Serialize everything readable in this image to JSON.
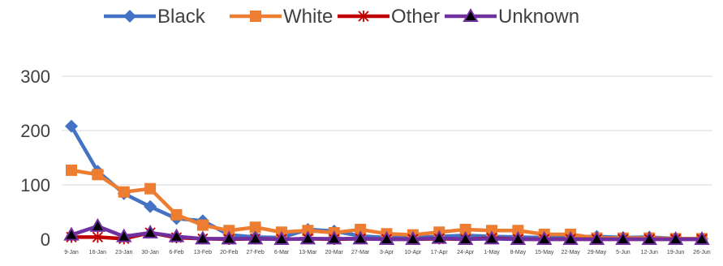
{
  "chart_data": {
    "type": "line",
    "title": "",
    "xlabel": "",
    "ylabel": "",
    "ylim": [
      0,
      300
    ],
    "yticks": [
      0,
      100,
      200,
      300
    ],
    "grid": true,
    "legend_position": "top",
    "categories": [
      "9-Jan",
      "16-Jan",
      "23-Jan",
      "30-Jan",
      "6-Feb",
      "13-Feb",
      "20-Feb",
      "27-Feb",
      "6-Mar",
      "13-Mar",
      "20-Mar",
      "27-Mar",
      "3-Apr",
      "10-Apr",
      "17-Apr",
      "24-Apr",
      "1-May",
      "8-May",
      "15-May",
      "22-May",
      "29-May",
      "5-Jun",
      "12-Jun",
      "19-Jun",
      "26-Jun"
    ],
    "series": [
      {
        "name": "Black",
        "color": "#4472C4",
        "marker": "diamond",
        "values": [
          208,
          125,
          84,
          60,
          38,
          34,
          8,
          4,
          3,
          18,
          15,
          6,
          3,
          3,
          5,
          7,
          5,
          4,
          3,
          4,
          5,
          3,
          4,
          1,
          1
        ]
      },
      {
        "name": "White",
        "color": "#ED7D31",
        "marker": "square",
        "values": [
          127,
          119,
          87,
          93,
          45,
          26,
          16,
          22,
          13,
          16,
          12,
          18,
          10,
          8,
          13,
          18,
          16,
          16,
          9,
          9,
          2,
          2,
          2,
          1,
          1
        ]
      },
      {
        "name": "Other",
        "color": "#C00000",
        "marker": "star",
        "values": [
          4,
          4,
          1,
          12,
          3,
          1,
          0,
          1,
          0,
          1,
          0,
          1,
          0,
          0,
          1,
          0,
          2,
          0,
          0,
          0,
          0,
          0,
          0,
          0,
          0
        ]
      },
      {
        "name": "Unknown",
        "color": "#7030A0",
        "marker": "triangle",
        "values": [
          8,
          24,
          5,
          12,
          5,
          1,
          1,
          1,
          0,
          1,
          1,
          1,
          0,
          0,
          2,
          0,
          1,
          0,
          0,
          0,
          0,
          0,
          0,
          0,
          0
        ]
      }
    ]
  }
}
